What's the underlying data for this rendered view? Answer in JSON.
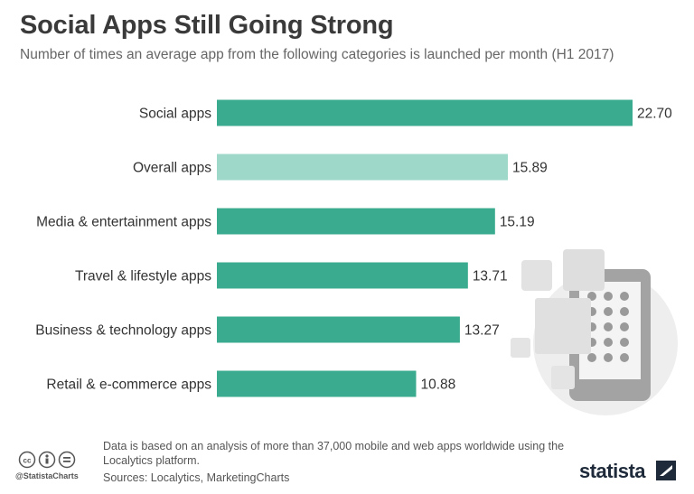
{
  "header": {
    "title": "Social Apps Still Going Strong",
    "subtitle": "Number of times an average app from the following categories is launched per month (H1 2017)"
  },
  "chart_data": {
    "type": "bar",
    "orientation": "horizontal",
    "categories": [
      "Social apps",
      "Overall apps",
      "Media & entertainment apps",
      "Travel & lifestyle apps",
      "Business & technology apps",
      "Retail & e-commerce apps"
    ],
    "values": [
      22.7,
      15.89,
      15.19,
      13.71,
      13.27,
      10.88
    ],
    "value_labels": [
      "22.70",
      "15.89",
      "15.19",
      "13.71",
      "13.27",
      "10.88"
    ],
    "xlim": [
      0,
      22.7
    ],
    "grid": false,
    "legend": "none",
    "colors": {
      "bar": "#3aab8e",
      "highlight_bar": "#9dd8c8",
      "highlight_index": 1
    }
  },
  "footer": {
    "note": "Data is based on an analysis of more than 37,000 mobile and web apps worldwide using the Localytics platform.",
    "sources": "Sources: Localytics, MarketingCharts",
    "handle": "@StatistaCharts",
    "brand": "statista"
  },
  "icons": [
    "cc-icon",
    "attribution-icon",
    "no-derivatives-icon",
    "statista-logo-icon",
    "tablet-illustration-icon"
  ]
}
